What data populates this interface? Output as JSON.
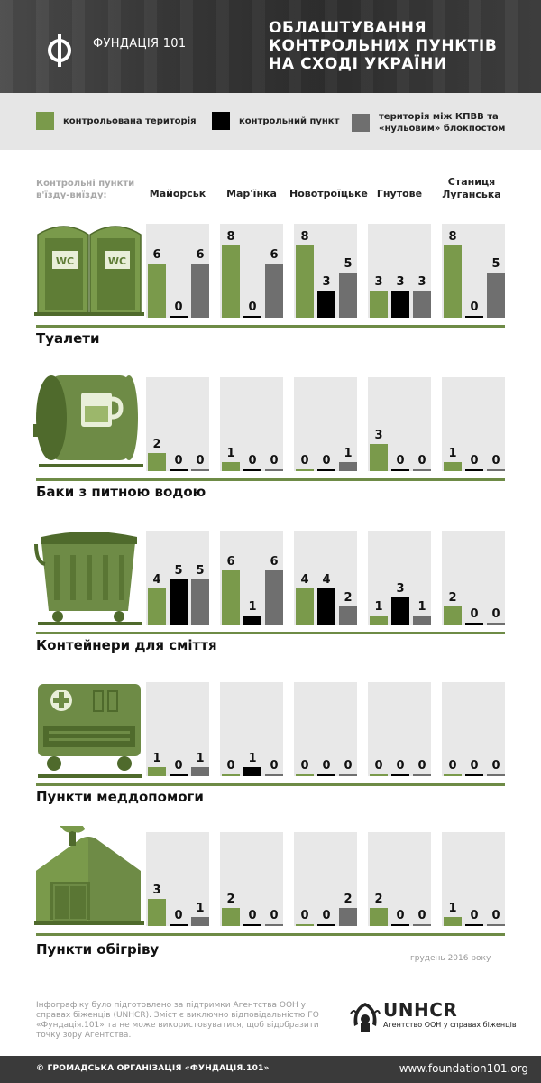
{
  "header": {
    "brand": "ФУНДАЦІЯ 101",
    "title_lines": [
      "ОБЛАШТУВАННЯ",
      "КОНТРОЛЬНИХ ПУНКТІВ",
      "НА СХОДІ УКРАЇНИ"
    ]
  },
  "legend": [
    {
      "label": "контрольована територія",
      "color": "#7a9a4b"
    },
    {
      "label": "контрольний пункт",
      "color": "#000000"
    },
    {
      "label": "територія між КПВВ та «нульовим» блокпостом",
      "color": "#6f6f6f"
    }
  ],
  "row_header": "Контрольні пункти в'їзду-виїзду:",
  "checkpoints": [
    "Майорськ",
    "Мар'їнка",
    "Новотроїцьке",
    "Гнутове",
    "Станиця Луганська"
  ],
  "chart_data": {
    "type": "bar",
    "categories": [
      "Майорськ",
      "Мар'їнка",
      "Новотроїцьке",
      "Гнутове",
      "Станиця Луганська"
    ],
    "series_names": [
      "контрольована територія",
      "контрольний пункт",
      "територія між КПВВ та «нульовим» блокпостом"
    ],
    "series_colors": [
      "#7a9a4b",
      "#000000",
      "#6f6f6f"
    ],
    "ylim": [
      0,
      8
    ],
    "groups": [
      {
        "title": "Туалети",
        "icon": "toilet-icon",
        "values": [
          [
            6,
            0,
            6
          ],
          [
            8,
            0,
            6
          ],
          [
            8,
            3,
            5
          ],
          [
            3,
            3,
            3
          ],
          [
            8,
            0,
            5
          ]
        ]
      },
      {
        "title": "Баки з питною водою",
        "icon": "water-tank-icon",
        "values": [
          [
            2,
            0,
            0
          ],
          [
            1,
            0,
            0
          ],
          [
            0,
            0,
            1
          ],
          [
            3,
            0,
            0
          ],
          [
            1,
            0,
            0
          ]
        ]
      },
      {
        "title": "Контейнери для сміття",
        "icon": "trash-container-icon",
        "values": [
          [
            4,
            5,
            5
          ],
          [
            6,
            1,
            6
          ],
          [
            4,
            4,
            2
          ],
          [
            1,
            3,
            1
          ],
          [
            2,
            0,
            0
          ]
        ]
      },
      {
        "title": "Пункти меддопомоги",
        "icon": "medical-truck-icon",
        "values": [
          [
            1,
            0,
            1
          ],
          [
            0,
            1,
            0
          ],
          [
            0,
            0,
            0
          ],
          [
            0,
            0,
            0
          ],
          [
            0,
            0,
            0
          ]
        ]
      },
      {
        "title": "Пункти обігріву",
        "icon": "heating-tent-icon",
        "values": [
          [
            3,
            0,
            1
          ],
          [
            2,
            0,
            0
          ],
          [
            0,
            0,
            2
          ],
          [
            2,
            0,
            0
          ],
          [
            1,
            0,
            0
          ]
        ]
      }
    ]
  },
  "date_note": "грудень 2016 року",
  "disclaimer": "Інфографіку було підготовлено за підтримки Агентства ООН у справах біженців (UNHCR). Зміст є виключно відповідальністю ГО «Фундація.101» та не може використовуватися, щоб відобразити точку зору Агентства.",
  "unhcr": {
    "name": "UNHCR",
    "subtitle": "Агентство ООН у справах біженців"
  },
  "footer": {
    "copyright": "© ГРОМАДСЬКА ОРГАНІЗАЦІЯ «ФУНДАЦІЯ.101»",
    "website": "www.foundation101.org"
  }
}
